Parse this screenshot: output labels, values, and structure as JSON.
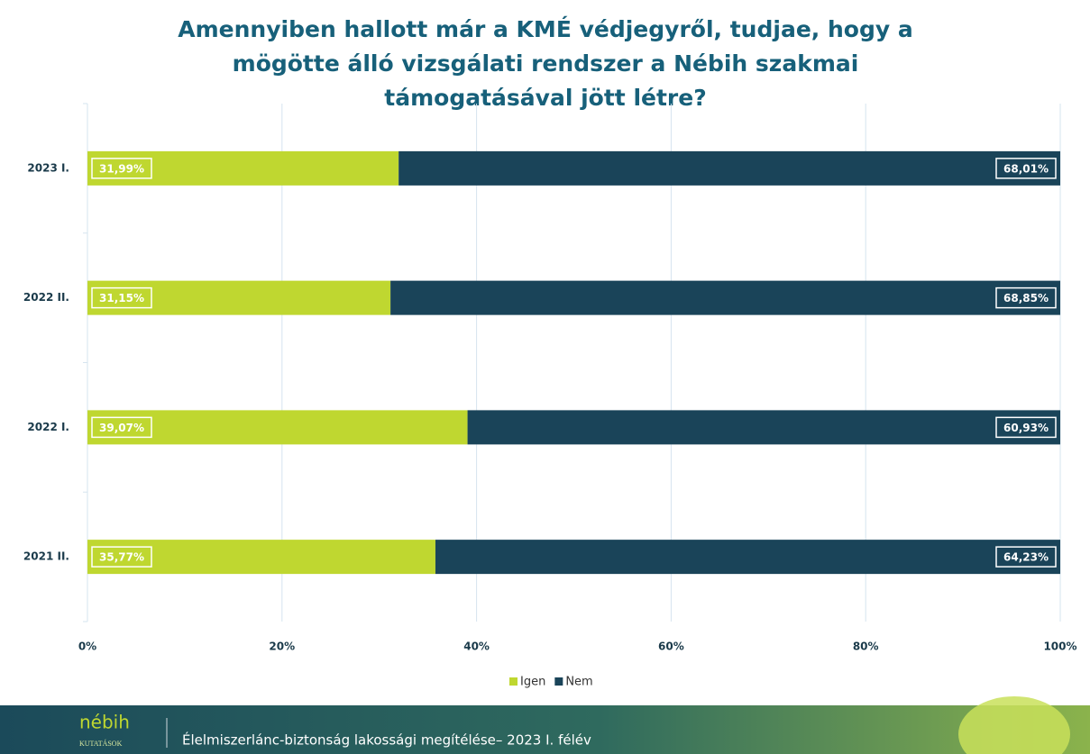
{
  "chart_data": {
    "type": "stacked_bar_horizontal",
    "title": "Amennyiben hallott már a KMÉ védjegyről, tudjae, hogy a mögötte álló vizsgálati rendszer a Nébih szakmai támogatásával jött létre?",
    "categories": [
      "2023 I.",
      "2022 II.",
      "2022 I.",
      "2021 II."
    ],
    "series": [
      {
        "name": "Igen",
        "color": "#bfd730",
        "values": [
          31.99,
          31.15,
          39.07,
          35.77
        ],
        "value_labels": [
          "31,99%",
          "31,15%",
          "39,07%",
          "35,77%"
        ]
      },
      {
        "name": "Nem",
        "color": "#1a4459",
        "values": [
          68.01,
          68.85,
          60.93,
          64.23
        ],
        "value_labels": [
          "68,01%",
          "68,85%",
          "60,93%",
          "64,23%"
        ]
      }
    ],
    "xlim": [
      0,
      100
    ],
    "xticks": [
      {
        "value": 0,
        "label": "0%"
      },
      {
        "value": 20,
        "label": "20%"
      },
      {
        "value": 40,
        "label": "40%"
      },
      {
        "value": 60,
        "label": "60%"
      },
      {
        "value": 80,
        "label": "80%"
      },
      {
        "value": 100,
        "label": "100%"
      }
    ],
    "grid": true,
    "legend": "bottom"
  },
  "footer": {
    "brand": "nébih",
    "brand_sub": "KUTATÁSOK",
    "text": "Élelmiszerlánc-biztonság lakossági megítélése– 2023 I. félév"
  }
}
